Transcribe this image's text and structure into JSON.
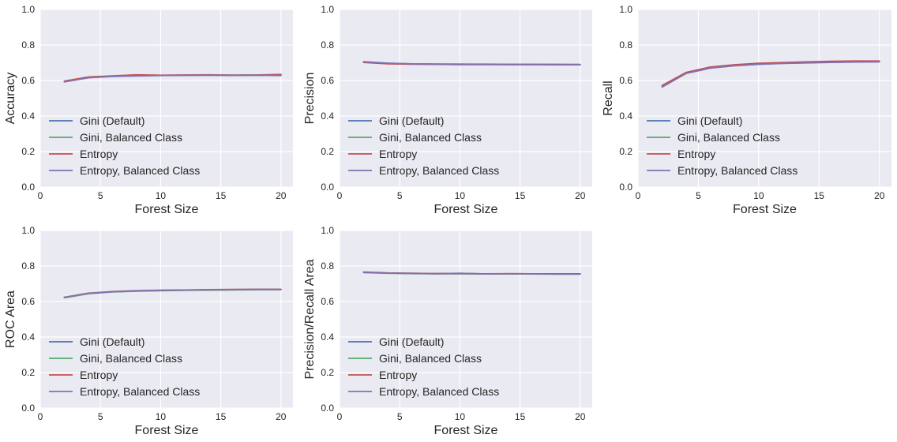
{
  "chart_data": [
    {
      "type": "line",
      "xlabel": "Forest Size",
      "ylabel": "Accuracy",
      "xlim": [
        0,
        21
      ],
      "ylim": [
        0,
        1
      ],
      "xticks": [
        0,
        5,
        10,
        15,
        20
      ],
      "yticks": [
        0.0,
        0.2,
        0.4,
        0.6,
        0.8,
        1.0
      ],
      "ytick_labels": [
        "0.0",
        "0.2",
        "0.4",
        "0.6",
        "0.8",
        "1.0"
      ],
      "grid": true,
      "legend_position": "lower-left",
      "series": [
        {
          "name": "Gini (Default)",
          "color": "#4c72b0",
          "x": [
            2,
            4,
            6,
            8,
            10,
            12,
            14,
            16,
            18,
            20
          ],
          "y": [
            0.595,
            0.618,
            0.625,
            0.628,
            0.629,
            0.63,
            0.631,
            0.63,
            0.63,
            0.631
          ]
        },
        {
          "name": "Gini, Balanced Class",
          "color": "#55a868",
          "x": [
            2,
            4,
            6,
            8,
            10,
            12,
            14,
            16,
            18,
            20
          ],
          "y": [
            0.593,
            0.617,
            0.624,
            0.627,
            0.629,
            0.63,
            0.63,
            0.63,
            0.631,
            0.632
          ]
        },
        {
          "name": "Entropy",
          "color": "#c44e52",
          "x": [
            2,
            4,
            6,
            8,
            10,
            12,
            14,
            16,
            18,
            20
          ],
          "y": [
            0.597,
            0.62,
            0.626,
            0.632,
            0.63,
            0.631,
            0.632,
            0.63,
            0.631,
            0.634
          ]
        },
        {
          "name": "Entropy, Balanced Class",
          "color": "#8172b2",
          "x": [
            2,
            4,
            6,
            8,
            10,
            12,
            14,
            16,
            18,
            20
          ],
          "y": [
            0.592,
            0.615,
            0.623,
            0.626,
            0.628,
            0.629,
            0.63,
            0.629,
            0.63,
            0.628
          ]
        }
      ]
    },
    {
      "type": "line",
      "xlabel": "Forest Size",
      "ylabel": "Precision",
      "xlim": [
        0,
        21
      ],
      "ylim": [
        0,
        1
      ],
      "xticks": [
        0,
        5,
        10,
        15,
        20
      ],
      "yticks": [
        0.0,
        0.2,
        0.4,
        0.6,
        0.8,
        1.0
      ],
      "ytick_labels": [
        "0.0",
        "0.2",
        "0.4",
        "0.6",
        "0.8",
        "1.0"
      ],
      "grid": true,
      "legend_position": "lower-left",
      "series": [
        {
          "name": "Gini (Default)",
          "color": "#4c72b0",
          "x": [
            2,
            4,
            6,
            8,
            10,
            12,
            14,
            16,
            18,
            20
          ],
          "y": [
            0.705,
            0.697,
            0.694,
            0.692,
            0.692,
            0.691,
            0.691,
            0.691,
            0.69,
            0.69
          ]
        },
        {
          "name": "Gini, Balanced Class",
          "color": "#55a868",
          "x": [
            2,
            4,
            6,
            8,
            10,
            12,
            14,
            16,
            18,
            20
          ],
          "y": [
            0.703,
            0.696,
            0.693,
            0.692,
            0.691,
            0.691,
            0.69,
            0.69,
            0.69,
            0.69
          ]
        },
        {
          "name": "Entropy",
          "color": "#c44e52",
          "x": [
            2,
            4,
            6,
            8,
            10,
            12,
            14,
            16,
            18,
            20
          ],
          "y": [
            0.702,
            0.694,
            0.692,
            0.691,
            0.69,
            0.69,
            0.69,
            0.69,
            0.689,
            0.689
          ]
        },
        {
          "name": "Entropy, Balanced Class",
          "color": "#8172b2",
          "x": [
            2,
            4,
            6,
            8,
            10,
            12,
            14,
            16,
            18,
            20
          ],
          "y": [
            0.706,
            0.698,
            0.694,
            0.693,
            0.692,
            0.692,
            0.691,
            0.691,
            0.691,
            0.69
          ]
        }
      ]
    },
    {
      "type": "line",
      "xlabel": "Forest Size",
      "ylabel": "Recall",
      "xlim": [
        0,
        21
      ],
      "ylim": [
        0,
        1
      ],
      "xticks": [
        0,
        5,
        10,
        15,
        20
      ],
      "yticks": [
        0.0,
        0.2,
        0.4,
        0.6,
        0.8,
        1.0
      ],
      "ytick_labels": [
        "0.0",
        "0.2",
        "0.4",
        "0.6",
        "0.8",
        "1.0"
      ],
      "grid": true,
      "legend_position": "lower-left",
      "series": [
        {
          "name": "Gini (Default)",
          "color": "#4c72b0",
          "x": [
            2,
            4,
            6,
            8,
            10,
            12,
            14,
            16,
            18,
            20
          ],
          "y": [
            0.565,
            0.642,
            0.672,
            0.684,
            0.692,
            0.697,
            0.7,
            0.703,
            0.705,
            0.706
          ]
        },
        {
          "name": "Gini, Balanced Class",
          "color": "#55a868",
          "x": [
            2,
            4,
            6,
            8,
            10,
            12,
            14,
            16,
            18,
            20
          ],
          "y": [
            0.568,
            0.645,
            0.674,
            0.686,
            0.693,
            0.698,
            0.701,
            0.704,
            0.706,
            0.707
          ]
        },
        {
          "name": "Entropy",
          "color": "#c44e52",
          "x": [
            2,
            4,
            6,
            8,
            10,
            12,
            14,
            16,
            18,
            20
          ],
          "y": [
            0.572,
            0.646,
            0.676,
            0.689,
            0.697,
            0.701,
            0.705,
            0.708,
            0.71,
            0.71
          ]
        },
        {
          "name": "Entropy, Balanced Class",
          "color": "#8172b2",
          "x": [
            2,
            4,
            6,
            8,
            10,
            12,
            14,
            16,
            18,
            20
          ],
          "y": [
            0.563,
            0.64,
            0.67,
            0.683,
            0.691,
            0.696,
            0.699,
            0.702,
            0.704,
            0.705
          ]
        }
      ]
    },
    {
      "type": "line",
      "xlabel": "Forest Size",
      "ylabel": "ROC Area",
      "xlim": [
        0,
        21
      ],
      "ylim": [
        0,
        1
      ],
      "xticks": [
        0,
        5,
        10,
        15,
        20
      ],
      "yticks": [
        0.0,
        0.2,
        0.4,
        0.6,
        0.8,
        1.0
      ],
      "ytick_labels": [
        "0.0",
        "0.2",
        "0.4",
        "0.6",
        "0.8",
        "1.0"
      ],
      "grid": true,
      "legend_position": "lower-left",
      "series": [
        {
          "name": "Gini (Default)",
          "color": "#4c72b0",
          "x": [
            2,
            4,
            6,
            8,
            10,
            12,
            14,
            16,
            18,
            20
          ],
          "y": [
            0.622,
            0.645,
            0.655,
            0.659,
            0.662,
            0.664,
            0.665,
            0.666,
            0.667,
            0.667
          ]
        },
        {
          "name": "Gini, Balanced Class",
          "color": "#55a868",
          "x": [
            2,
            4,
            6,
            8,
            10,
            12,
            14,
            16,
            18,
            20
          ],
          "y": [
            0.621,
            0.644,
            0.654,
            0.658,
            0.661,
            0.663,
            0.664,
            0.665,
            0.666,
            0.666
          ]
        },
        {
          "name": "Entropy",
          "color": "#c44e52",
          "x": [
            2,
            4,
            6,
            8,
            10,
            12,
            14,
            16,
            18,
            20
          ],
          "y": [
            0.624,
            0.647,
            0.656,
            0.661,
            0.664,
            0.665,
            0.667,
            0.668,
            0.669,
            0.669
          ]
        },
        {
          "name": "Entropy, Balanced Class",
          "color": "#8172b2",
          "x": [
            2,
            4,
            6,
            8,
            10,
            12,
            14,
            16,
            18,
            20
          ],
          "y": [
            0.623,
            0.646,
            0.655,
            0.66,
            0.663,
            0.664,
            0.666,
            0.667,
            0.668,
            0.668
          ]
        }
      ]
    },
    {
      "type": "line",
      "xlabel": "Forest Size",
      "ylabel": "Precision/Recall Area",
      "xlim": [
        0,
        21
      ],
      "ylim": [
        0,
        1
      ],
      "xticks": [
        0,
        5,
        10,
        15,
        20
      ],
      "yticks": [
        0.0,
        0.2,
        0.4,
        0.6,
        0.8,
        1.0
      ],
      "ytick_labels": [
        "0.0",
        "0.2",
        "0.4",
        "0.6",
        "0.8",
        "1.0"
      ],
      "grid": true,
      "legend_position": "lower-left",
      "series": [
        {
          "name": "Gini (Default)",
          "color": "#4c72b0",
          "x": [
            2,
            4,
            6,
            8,
            10,
            12,
            14,
            16,
            18,
            20
          ],
          "y": [
            0.765,
            0.76,
            0.758,
            0.757,
            0.757,
            0.756,
            0.756,
            0.756,
            0.755,
            0.755
          ]
        },
        {
          "name": "Gini, Balanced Class",
          "color": "#55a868",
          "x": [
            2,
            4,
            6,
            8,
            10,
            12,
            14,
            16,
            18,
            20
          ],
          "y": [
            0.763,
            0.759,
            0.757,
            0.756,
            0.756,
            0.755,
            0.755,
            0.755,
            0.755,
            0.755
          ]
        },
        {
          "name": "Entropy",
          "color": "#c44e52",
          "x": [
            2,
            4,
            6,
            8,
            10,
            12,
            14,
            16,
            18,
            20
          ],
          "y": [
            0.766,
            0.761,
            0.759,
            0.757,
            0.758,
            0.756,
            0.757,
            0.756,
            0.756,
            0.756
          ]
        },
        {
          "name": "Entropy, Balanced Class",
          "color": "#8172b2",
          "x": [
            2,
            4,
            6,
            8,
            10,
            12,
            14,
            16,
            18,
            20
          ],
          "y": [
            0.764,
            0.76,
            0.758,
            0.756,
            0.759,
            0.755,
            0.756,
            0.755,
            0.754,
            0.754
          ]
        }
      ]
    }
  ]
}
